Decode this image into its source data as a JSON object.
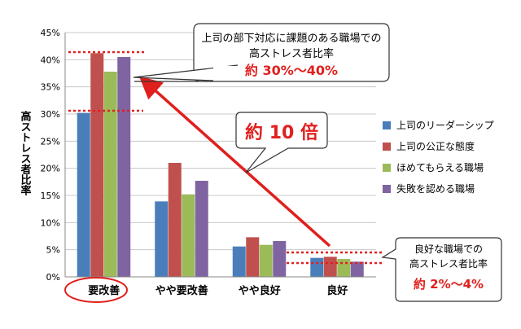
{
  "chart_data": {
    "type": "bar",
    "ylabel": "高ストレス者比率",
    "ylim": [
      0,
      45
    ],
    "yticks": [
      {
        "value": 0,
        "label": "0%"
      },
      {
        "value": 5,
        "label": "5%"
      },
      {
        "value": 10,
        "label": "10%"
      },
      {
        "value": 15,
        "label": "15%"
      },
      {
        "value": 20,
        "label": "20%"
      },
      {
        "value": 25,
        "label": "25%"
      },
      {
        "value": 30,
        "label": "30%"
      },
      {
        "value": 35,
        "label": "35%"
      },
      {
        "value": 40,
        "label": "40%"
      },
      {
        "value": 45,
        "label": "45%"
      }
    ],
    "grid": true,
    "legend_position": "right",
    "categories": [
      "要改善",
      "やや要改善",
      "やや良好",
      "良好"
    ],
    "series": [
      {
        "name": "上司のリーダーシップ",
        "color": "#4a7ebb",
        "values": [
          30.2,
          13.9,
          5.6,
          3.5
        ]
      },
      {
        "name": "上司の公正な態度",
        "color": "#c0504d",
        "values": [
          41.2,
          21.0,
          7.3,
          3.7
        ]
      },
      {
        "name": "ほめてもらえる職場",
        "color": "#9bbb59",
        "values": [
          37.8,
          15.2,
          5.9,
          3.3
        ]
      },
      {
        "name": "失敗を認める職場",
        "color": "#8064a2",
        "values": [
          40.5,
          17.7,
          6.6,
          2.8
        ]
      }
    ],
    "highlighted_category": "要改善",
    "annotations": {
      "top_callout": {
        "line1": "上司の部下対応に課題のある職場での",
        "line2": "高ストレス者比率",
        "value": "約 30%～40%"
      },
      "ratio_callout": {
        "text": "約 10 倍"
      },
      "bottom_callout": {
        "line1": "良好な職場での",
        "line2": "高ストレス者比率",
        "value": "約 2%～4%"
      }
    },
    "colors": {
      "accent_red": "#e0201e",
      "grid": "#c8c8c8",
      "axis": "#888888"
    }
  }
}
